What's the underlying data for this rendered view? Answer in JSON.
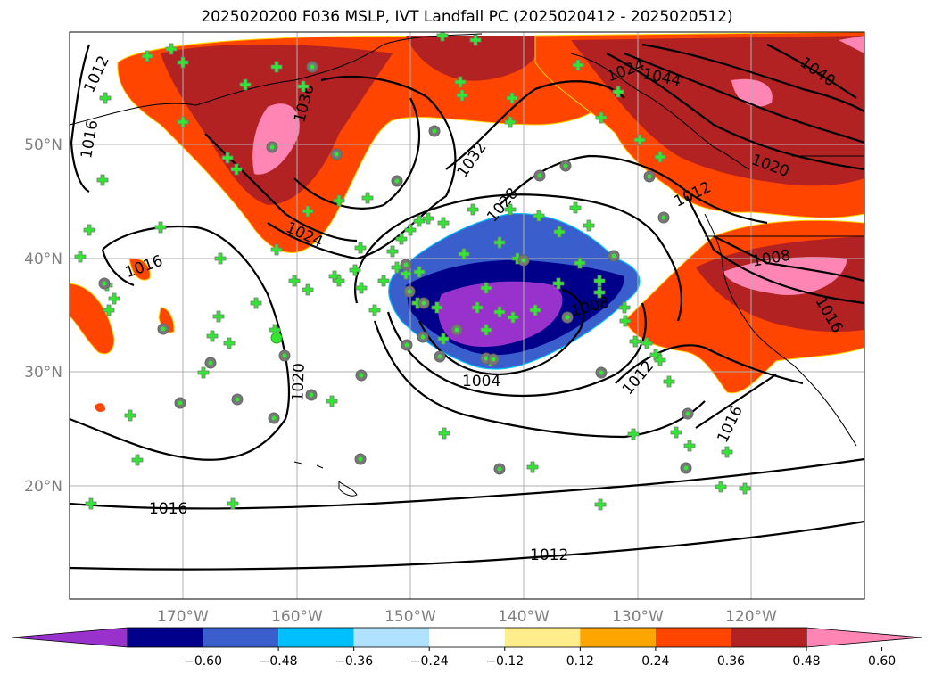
{
  "title": "2025020200 F036 MSLP, IVT Landfall PC (2025020412 - 2025020512)",
  "lat_labels": [
    "50°N",
    "40°N",
    "30°N",
    "20°N"
  ],
  "lon_labels": [
    "170°W",
    "160°W",
    "150°W",
    "140°W",
    "130°W",
    "120°W"
  ],
  "colorbar": {
    "ticks": [
      "−0.60",
      "−0.48",
      "−0.36",
      "−0.24",
      "−0.12",
      "0.12",
      "0.24",
      "0.36",
      "0.48",
      "0.60"
    ],
    "colors": [
      "#9932cc",
      "#00008b",
      "#3a5fcd",
      "#00bfff",
      "#b0e2ff",
      "#ffffff",
      "#ffec8b",
      "#ffa500",
      "#ff4500",
      "#b22222",
      "#ff85b4"
    ]
  },
  "isobar_labels": [
    "1012",
    "1016",
    "1036",
    "1032",
    "1028",
    "1024",
    "1016",
    "1020",
    "1016",
    "1012",
    "1004",
    "1008",
    "1012",
    "1016",
    "1008",
    "1016",
    "1020",
    "1012",
    "1040",
    "1044",
    "1024"
  ],
  "colors": {
    "marker": "#33e633",
    "marker_edge": "#777777",
    "grid": "#b0b0b0"
  }
}
